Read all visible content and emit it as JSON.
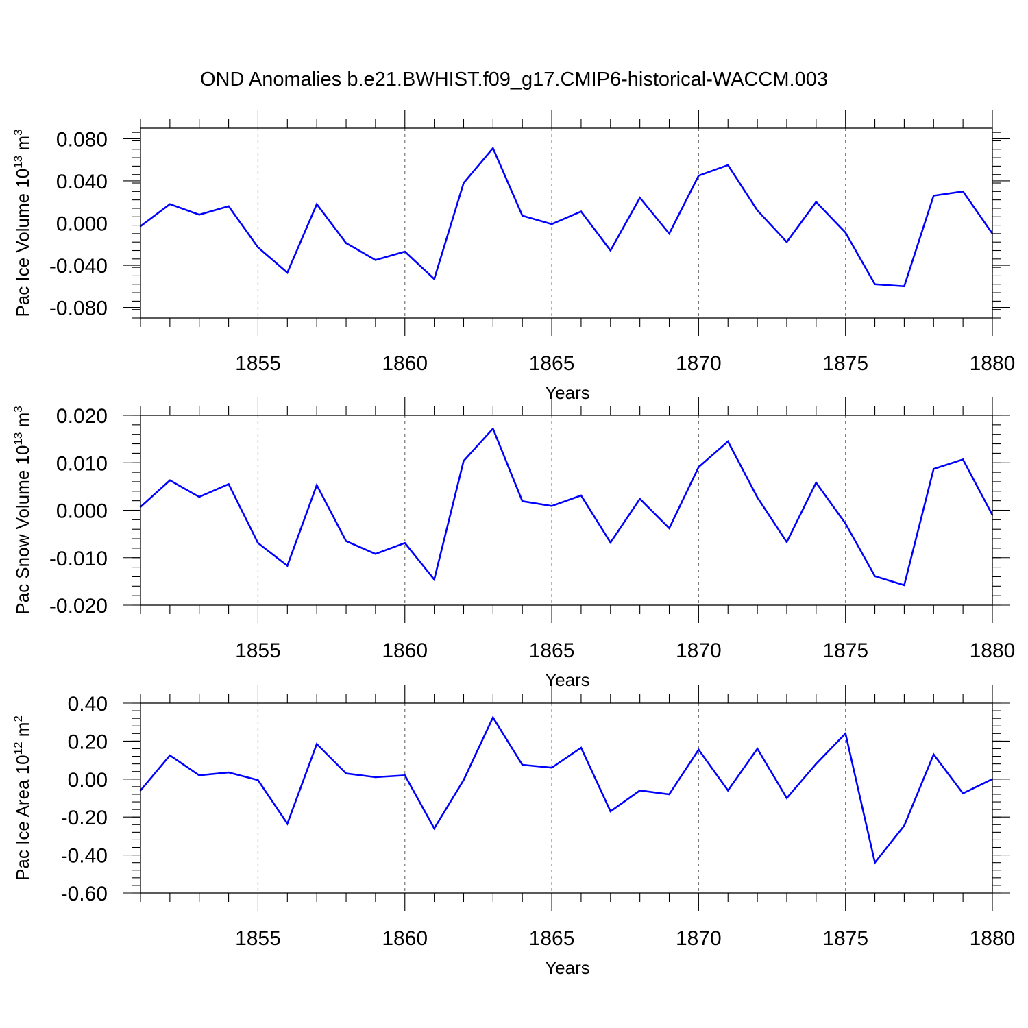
{
  "figure": {
    "title": "OND Anomalies b.e21.BWHIST.f09_g17.CMIP6-historical-WACCM.003"
  },
  "chart_data": [
    {
      "type": "line",
      "xlabel": "Years",
      "ylabel": "Pac Ice Volume 10",
      "ylabel_exp": "13",
      "ylabel_unit": " m",
      "ylabel_unit_exp": "3",
      "xlim": [
        1851,
        1880
      ],
      "ylim": [
        -0.09,
        0.09
      ],
      "yticks": [
        -0.08,
        -0.04,
        0.0,
        0.04,
        0.08
      ],
      "ytick_labels": [
        "-0.080",
        "-0.040",
        "0.000",
        "0.040",
        "0.080"
      ],
      "xticks": [
        1855,
        1860,
        1865,
        1870,
        1875,
        1880
      ],
      "xtick_labels": [
        "1855",
        "1860",
        "1865",
        "1870",
        "1875",
        "1880"
      ],
      "grid": "dashed vertical at labeled years",
      "color": "#0000ff",
      "x": [
        1851,
        1852,
        1853,
        1854,
        1855,
        1856,
        1857,
        1858,
        1859,
        1860,
        1861,
        1862,
        1863,
        1864,
        1865,
        1866,
        1867,
        1868,
        1869,
        1870,
        1871,
        1872,
        1873,
        1874,
        1875,
        1876,
        1877,
        1878,
        1879,
        1880
      ],
      "values": [
        -0.003,
        0.018,
        0.008,
        0.016,
        -0.023,
        -0.047,
        0.018,
        -0.019,
        -0.035,
        -0.027,
        -0.053,
        0.038,
        0.071,
        0.007,
        -0.001,
        0.011,
        -0.026,
        0.024,
        -0.01,
        0.045,
        0.055,
        0.012,
        -0.018,
        0.02,
        -0.009,
        -0.058,
        -0.06,
        0.026,
        0.03,
        -0.01
      ]
    },
    {
      "type": "line",
      "xlabel": "Years",
      "ylabel": "Pac Snow Volume 10",
      "ylabel_exp": "13",
      "ylabel_unit": " m",
      "ylabel_unit_exp": "3",
      "xlim": [
        1851,
        1880
      ],
      "ylim": [
        -0.02,
        0.02
      ],
      "yticks": [
        -0.02,
        -0.01,
        0.0,
        0.01,
        0.02
      ],
      "ytick_labels": [
        "-0.020",
        "-0.010",
        "0.000",
        "0.010",
        "0.020"
      ],
      "xticks": [
        1855,
        1860,
        1865,
        1870,
        1875,
        1880
      ],
      "xtick_labels": [
        "1855",
        "1860",
        "1865",
        "1870",
        "1875",
        "1880"
      ],
      "grid": "dashed vertical at labeled years",
      "color": "#0000ff",
      "x": [
        1851,
        1852,
        1853,
        1854,
        1855,
        1856,
        1857,
        1858,
        1859,
        1860,
        1861,
        1862,
        1863,
        1864,
        1865,
        1866,
        1867,
        1868,
        1869,
        1870,
        1871,
        1872,
        1873,
        1874,
        1875,
        1876,
        1877,
        1878,
        1879,
        1880
      ],
      "values": [
        0.0007,
        0.0063,
        0.0028,
        0.0055,
        -0.0069,
        -0.0117,
        0.0053,
        -0.0065,
        -0.0092,
        -0.0069,
        -0.0146,
        0.0104,
        0.0172,
        0.0019,
        0.0009,
        0.0031,
        -0.0068,
        0.0024,
        -0.0038,
        0.0091,
        0.0145,
        0.0027,
        -0.0067,
        0.0058,
        -0.0028,
        -0.0139,
        -0.0158,
        0.0087,
        0.0107,
        -0.001
      ]
    },
    {
      "type": "line",
      "xlabel": "Years",
      "ylabel": "Pac Ice Area 10",
      "ylabel_exp": "12",
      "ylabel_unit": " m",
      "ylabel_unit_exp": "2",
      "xlim": [
        1851,
        1880
      ],
      "ylim": [
        -0.6,
        0.4
      ],
      "yticks": [
        -0.6,
        -0.4,
        -0.2,
        0.0,
        0.2,
        0.4
      ],
      "ytick_labels": [
        "-0.60",
        "-0.40",
        "-0.20",
        "0.00",
        "0.20",
        "0.40"
      ],
      "xticks": [
        1855,
        1860,
        1865,
        1870,
        1875,
        1880
      ],
      "xtick_labels": [
        "1855",
        "1860",
        "1865",
        "1870",
        "1875",
        "1880"
      ],
      "grid": "dashed vertical at labeled years",
      "color": "#0000ff",
      "x": [
        1851,
        1852,
        1853,
        1854,
        1855,
        1856,
        1857,
        1858,
        1859,
        1860,
        1861,
        1862,
        1863,
        1864,
        1865,
        1866,
        1867,
        1868,
        1869,
        1870,
        1871,
        1872,
        1873,
        1874,
        1875,
        1876,
        1877,
        1878,
        1879,
        1880
      ],
      "values": [
        -0.06,
        0.125,
        0.02,
        0.035,
        -0.005,
        -0.235,
        0.185,
        0.03,
        0.01,
        0.02,
        -0.26,
        -0.005,
        0.325,
        0.075,
        0.06,
        0.165,
        -0.17,
        -0.06,
        -0.08,
        0.155,
        -0.06,
        0.16,
        -0.1,
        0.08,
        0.24,
        -0.44,
        -0.245,
        0.13,
        -0.075,
        0.0
      ]
    }
  ]
}
